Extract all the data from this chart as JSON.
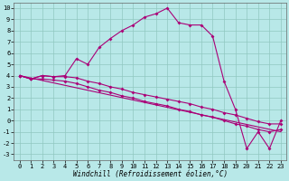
{
  "xlabel": "Windchill (Refroidissement éolien,°C)",
  "background_color": "#b8e8e8",
  "grid_color": "#90c8c0",
  "line_color": "#aa0077",
  "xlim": [
    -0.5,
    23.5
  ],
  "ylim": [
    -3.5,
    10.5
  ],
  "xticks": [
    0,
    1,
    2,
    3,
    4,
    5,
    6,
    7,
    8,
    9,
    10,
    11,
    12,
    13,
    14,
    15,
    16,
    17,
    18,
    19,
    20,
    21,
    22,
    23
  ],
  "yticks": [
    -3,
    -2,
    -1,
    0,
    1,
    2,
    3,
    4,
    5,
    6,
    7,
    8,
    9,
    10
  ],
  "line1_y": [
    4.0,
    3.7,
    4.0,
    3.9,
    4.0,
    5.5,
    5.0,
    6.5,
    7.3,
    8.0,
    8.5,
    9.2,
    9.5,
    10.0,
    8.7,
    8.5,
    8.5,
    7.5,
    3.5,
    1.0,
    -2.5,
    -1.0,
    -2.5,
    0.0
  ],
  "line2_y": [
    4.0,
    3.7,
    4.0,
    3.9,
    3.9,
    3.8,
    3.5,
    3.3,
    3.0,
    2.8,
    2.5,
    2.3,
    2.1,
    1.9,
    1.7,
    1.5,
    1.2,
    1.0,
    0.7,
    0.5,
    0.2,
    -0.1,
    -0.3,
    -0.3
  ],
  "line3_y": [
    4.0,
    3.7,
    3.7,
    3.6,
    3.5,
    3.3,
    3.0,
    2.7,
    2.5,
    2.2,
    2.0,
    1.7,
    1.5,
    1.3,
    1.0,
    0.8,
    0.5,
    0.3,
    0.0,
    -0.3,
    -0.5,
    -0.8,
    -1.0,
    -0.8
  ],
  "line4_y": [
    4.0,
    -1.0
  ],
  "line4_x": [
    0,
    23
  ],
  "figsize": [
    3.2,
    2.0
  ],
  "dpi": 100,
  "tick_fontsize": 5.0,
  "xlabel_fontsize": 5.5
}
